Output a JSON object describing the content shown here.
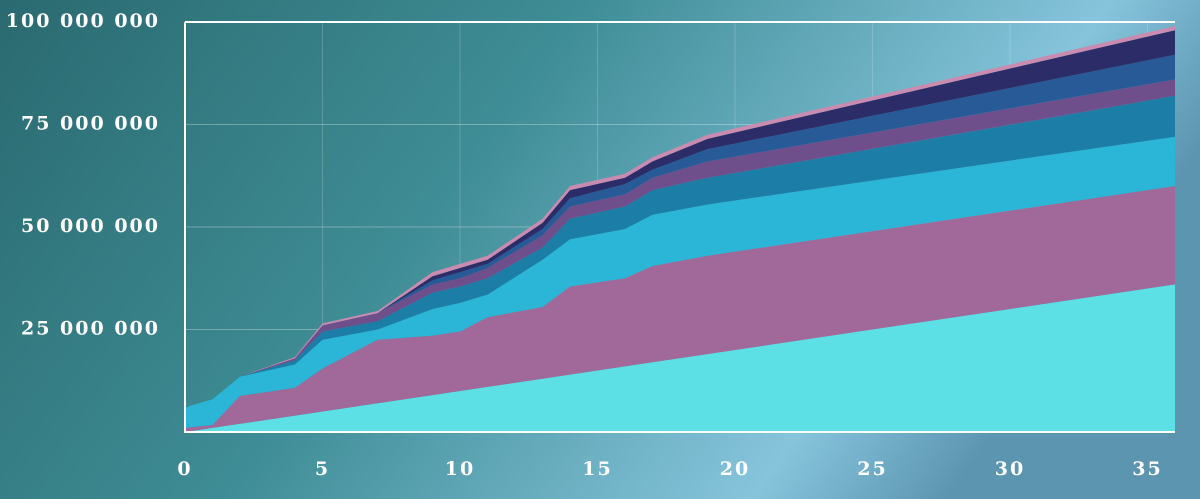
{
  "chart_data": {
    "type": "stacked_area",
    "x": [
      0,
      1,
      2,
      4,
      5,
      7,
      9,
      10,
      11,
      13,
      14,
      16,
      17,
      19,
      36
    ],
    "xlim": [
      0,
      36
    ],
    "xticks": [
      0,
      5,
      10,
      15,
      20,
      25,
      30,
      35
    ],
    "ylim": [
      0,
      100000000
    ],
    "yticks": [
      {
        "value": 25000000,
        "label": "25 000 000"
      },
      {
        "value": 50000000,
        "label": "50 000 000"
      },
      {
        "value": 75000000,
        "label": "75 000 000"
      },
      {
        "value": 100000000,
        "label": "100 000 000"
      }
    ],
    "grid": true,
    "series": [
      {
        "color": "#5ce0e6",
        "values": [
          0,
          1000000,
          2000000,
          4000000,
          5000000,
          7000000,
          9000000,
          10000000,
          11000000,
          13000000,
          14000000,
          16000000,
          17000000,
          19000000,
          36000000
        ]
      },
      {
        "color": "#a0699a",
        "values": [
          1000000,
          700000,
          6800000,
          6800000,
          10500000,
          15500000,
          14500000,
          14500000,
          17000000,
          17500000,
          21500000,
          21500000,
          23500000,
          24000000,
          24000000
        ]
      },
      {
        "color": "#2bb5d6",
        "values": [
          5000000,
          6300000,
          4700000,
          5700000,
          7000000,
          2500000,
          6500000,
          7000000,
          5500000,
          11500000,
          11500000,
          12000000,
          12500000,
          12500000,
          12000000
        ]
      },
      {
        "color": "#1c7ea6",
        "values": [
          0,
          0,
          0,
          1000000,
          2000000,
          2000000,
          4000000,
          4000000,
          4000000,
          3000000,
          5000000,
          5500000,
          6000000,
          6500000,
          10000000
        ]
      },
      {
        "color": "#6e4f8c",
        "values": [
          0,
          0,
          0,
          500000,
          1500000,
          2000000,
          2000000,
          2000000,
          2500000,
          3000000,
          3000000,
          3000000,
          3000000,
          4000000,
          4000000
        ]
      },
      {
        "color": "#275a96",
        "values": [
          0,
          0,
          0,
          0,
          0,
          0,
          1000000,
          1500000,
          1000000,
          1500000,
          2000000,
          2500000,
          2000000,
          3000000,
          6000000
        ]
      },
      {
        "color": "#2c2c68",
        "values": [
          0,
          0,
          0,
          0,
          0,
          0,
          1000000,
          1000000,
          1000000,
          1500000,
          2000000,
          1500000,
          2000000,
          2500000,
          6000000
        ]
      },
      {
        "color": "#c98bb0",
        "values": [
          0,
          0,
          0,
          300000,
          500000,
          500000,
          1000000,
          1000000,
          1000000,
          1000000,
          1000000,
          1000000,
          1000000,
          1000000,
          1000000
        ]
      }
    ]
  }
}
